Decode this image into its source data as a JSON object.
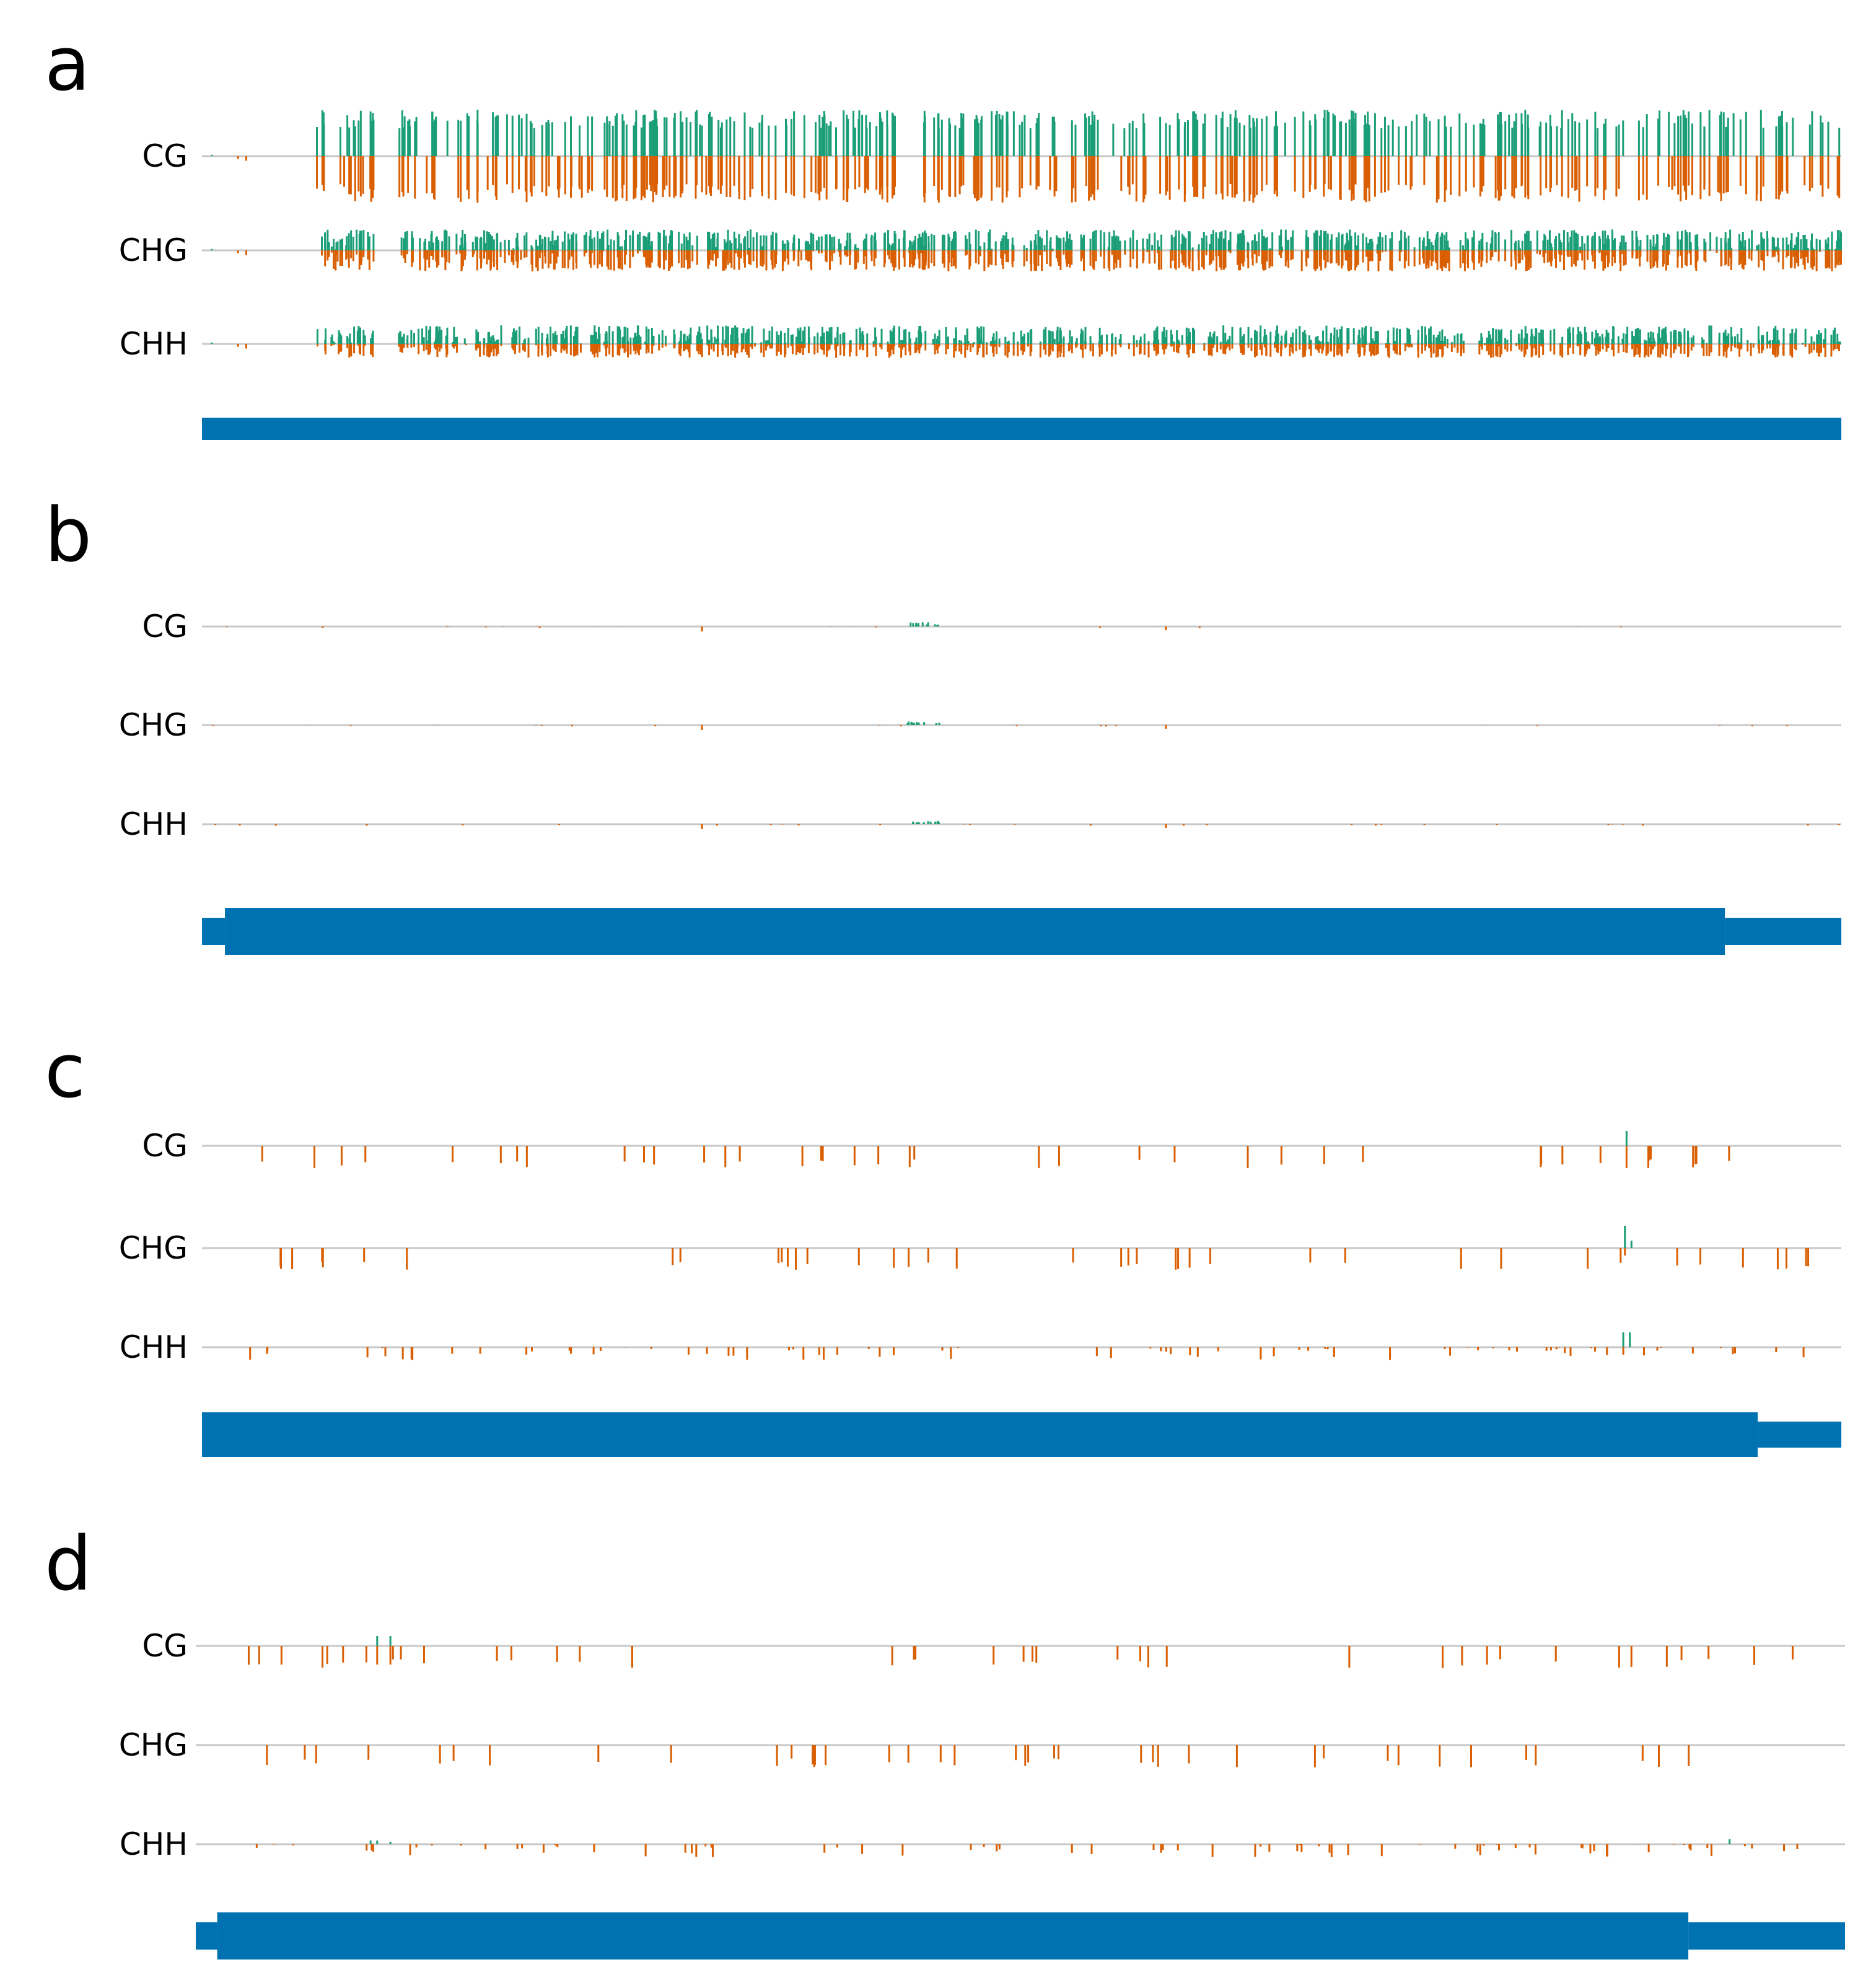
{
  "colors": {
    "positive_strand": "#1b9e77",
    "negative_strand": "#d95f02",
    "gene_model": "#0072b2",
    "baseline": "#c8c8c8"
  },
  "chart_data": [
    {
      "type": "bar",
      "panel": "a",
      "tracks": [
        "CG",
        "CHG",
        "CHH"
      ],
      "x_range": [
        0,
        1
      ],
      "y_range": [
        -1,
        1
      ],
      "pattern": "dense",
      "gene_model": [
        {
          "start": 0.0,
          "end": 1.0,
          "kind": "thick"
        }
      ]
    },
    {
      "type": "bar",
      "panel": "b",
      "tracks": [
        "CG",
        "CHG",
        "CHH"
      ],
      "x_range": [
        0,
        1
      ],
      "y_range": [
        -1,
        1
      ],
      "pattern": "sparse_small",
      "gene_model": [
        {
          "start": 0.0,
          "end": 0.014,
          "kind": "thin"
        },
        {
          "start": 0.014,
          "end": 0.929,
          "kind": "thick"
        },
        {
          "start": 0.929,
          "end": 1.0,
          "kind": "thin"
        }
      ]
    },
    {
      "type": "bar",
      "panel": "c",
      "tracks": [
        "CG",
        "CHG",
        "CHH"
      ],
      "x_range": [
        0,
        1
      ],
      "y_range": [
        -1,
        1
      ],
      "pattern": "sparse_large",
      "gene_model": [
        {
          "start": 0.0,
          "end": 0.949,
          "kind": "thick"
        },
        {
          "start": 0.949,
          "end": 1.0,
          "kind": "thin"
        }
      ]
    },
    {
      "type": "bar",
      "panel": "d",
      "tracks": [
        "CG",
        "CHG",
        "CHH"
      ],
      "x_range": [
        0,
        1
      ],
      "y_range": [
        -1,
        1
      ],
      "pattern": "sparse_large_d",
      "gene_model": [
        {
          "start": 0.0,
          "end": 0.013,
          "kind": "thin"
        },
        {
          "start": 0.013,
          "end": 0.905,
          "kind": "thick"
        },
        {
          "start": 0.905,
          "end": 1.0,
          "kind": "thin"
        }
      ]
    }
  ]
}
